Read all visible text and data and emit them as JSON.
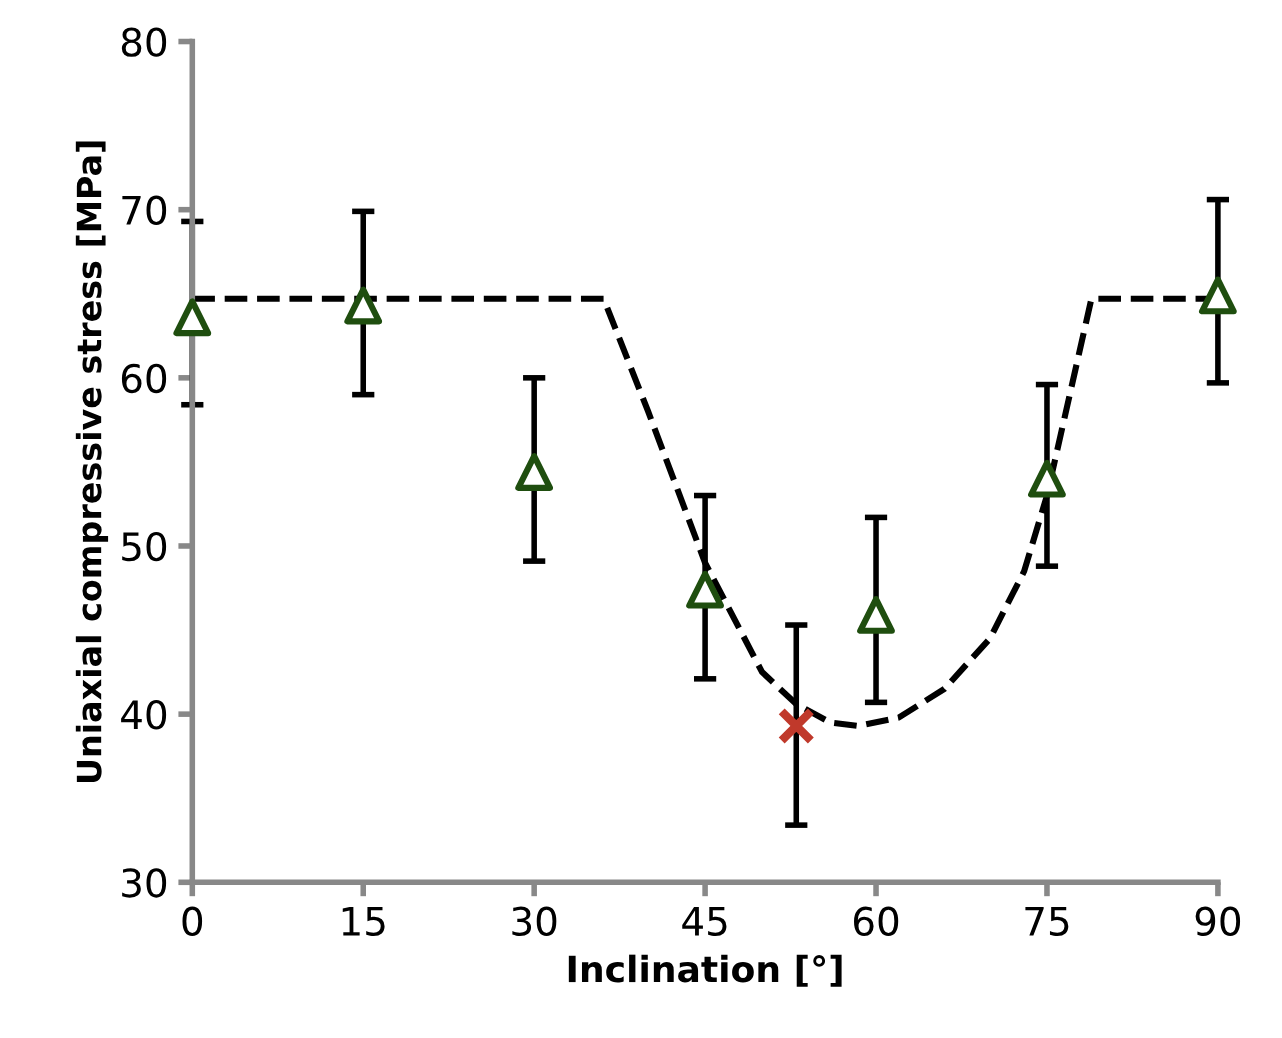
{
  "chart_data": {
    "type": "scatter",
    "xlabel": "Inclination [°]",
    "ylabel": "Uniaxial compressive stress [MPa]",
    "xlim": [
      0,
      90
    ],
    "xticks": [
      0,
      15,
      30,
      45,
      60,
      75,
      90
    ],
    "ylim": [
      30,
      80
    ],
    "yticks": [
      30,
      40,
      50,
      60,
      70,
      80
    ],
    "grid": false,
    "legend": false,
    "series": [
      {
        "type": "line",
        "line_style": "dashed",
        "marker": "none",
        "color": "#000000",
        "x": [
          0,
          36.1,
          40,
          45,
          50,
          53,
          56,
          58.4,
          62,
          66,
          70,
          73,
          75,
          77,
          78.9,
          90
        ],
        "values": [
          64.7,
          64.7,
          58,
          49,
          42.5,
          40.6,
          39.5,
          39.3,
          39.8,
          41.5,
          44.5,
          48.5,
          53,
          59,
          64.7,
          64.7
        ]
      },
      {
        "marker": "triangle",
        "color": "#1f4e0f",
        "x": [
          0,
          15,
          30,
          45,
          60,
          75,
          90
        ],
        "values": [
          63.6,
          64.3,
          54.4,
          47.4,
          45.9,
          54,
          64.9
        ],
        "errors": [
          [
            58.4,
            69.3
          ],
          [
            59,
            69.9
          ],
          [
            49.1,
            60
          ],
          [
            42.1,
            53
          ],
          [
            40.7,
            51.7
          ],
          [
            48.8,
            59.6
          ],
          [
            59.7,
            70.6
          ]
        ]
      },
      {
        "marker": "cross",
        "color": "#c0392b",
        "x": [
          53
        ],
        "values": [
          39.3
        ],
        "errors": [
          [
            33.4,
            45.3
          ]
        ]
      }
    ]
  }
}
